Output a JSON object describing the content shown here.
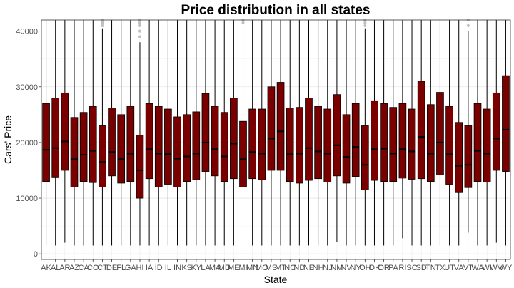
{
  "chart_data": {
    "type": "box",
    "title": "Price distribution in all states",
    "xlabel": "State",
    "ylabel": "Cars' Price",
    "ylim": [
      -1000,
      42000
    ],
    "yticks": [
      0,
      10000,
      20000,
      30000,
      40000
    ],
    "ytick_labels": [
      "0",
      "10000",
      "20000",
      "30000",
      "40000"
    ],
    "grid": true,
    "box_fill": "#7a0000",
    "box_edge": "#000000",
    "outlier_color": "#bfbfbf",
    "categories": [
      "AK",
      "AL",
      "AR",
      "AZ",
      "CA",
      "CO",
      "CT",
      "DE",
      "FL",
      "GA",
      "HI",
      "IA",
      "ID",
      "IL",
      "IN",
      "KS",
      "KY",
      "LA",
      "MA",
      "MD",
      "ME",
      "MI",
      "MN",
      "MO",
      "MS",
      "MT",
      "NC",
      "ND",
      "NE",
      "NH",
      "NJ",
      "NM",
      "NV",
      "NY",
      "OH",
      "OK",
      "OR",
      "PA",
      "RI",
      "SC",
      "SD",
      "TN",
      "TX",
      "UT",
      "VA",
      "VT",
      "WA",
      "WI",
      "WV",
      "WY"
    ],
    "boxes": [
      {
        "min": 1500,
        "q1": 13000,
        "median": 18700,
        "q3": 27000,
        "max": 42000,
        "outliers": []
      },
      {
        "min": 1500,
        "q1": 13800,
        "median": 19000,
        "q3": 28000,
        "max": 42000,
        "outliers": []
      },
      {
        "min": 2000,
        "q1": 15000,
        "median": 20200,
        "q3": 28900,
        "max": 42000,
        "outliers": []
      },
      {
        "min": 1500,
        "q1": 12000,
        "median": 17000,
        "q3": 24500,
        "max": 42000,
        "outliers": []
      },
      {
        "min": 1500,
        "q1": 13000,
        "median": 17800,
        "q3": 25400,
        "max": 42000,
        "outliers": []
      },
      {
        "min": 1500,
        "q1": 12800,
        "median": 18500,
        "q3": 26500,
        "max": 42000,
        "outliers": []
      },
      {
        "min": 1500,
        "q1": 12000,
        "median": 16500,
        "q3": 23000,
        "max": 40500,
        "outliers": [
          41000,
          41500,
          42000
        ]
      },
      {
        "min": 1500,
        "q1": 14000,
        "median": 18300,
        "q3": 26200,
        "max": 42000,
        "outliers": []
      },
      {
        "min": 1500,
        "q1": 12700,
        "median": 17000,
        "q3": 25000,
        "max": 42000,
        "outliers": []
      },
      {
        "min": 1500,
        "q1": 13000,
        "median": 18000,
        "q3": 26500,
        "max": 42000,
        "outliers": []
      },
      {
        "min": 1500,
        "q1": 10000,
        "median": 15000,
        "q3": 21300,
        "max": 38000,
        "outliers": [
          39000,
          40000,
          41000,
          41500,
          42000
        ]
      },
      {
        "min": 1500,
        "q1": 13500,
        "median": 18800,
        "q3": 27000,
        "max": 42000,
        "outliers": []
      },
      {
        "min": 1500,
        "q1": 12000,
        "median": 18000,
        "q3": 26500,
        "max": 42000,
        "outliers": []
      },
      {
        "min": 1500,
        "q1": 12500,
        "median": 17900,
        "q3": 26000,
        "max": 42000,
        "outliers": []
      },
      {
        "min": 1500,
        "q1": 12000,
        "median": 17100,
        "q3": 24600,
        "max": 42000,
        "outliers": []
      },
      {
        "min": 1500,
        "q1": 13000,
        "median": 17500,
        "q3": 25000,
        "max": 42000,
        "outliers": []
      },
      {
        "min": 1500,
        "q1": 13300,
        "median": 18000,
        "q3": 25500,
        "max": 42000,
        "outliers": []
      },
      {
        "min": 1500,
        "q1": 14800,
        "median": 20000,
        "q3": 28800,
        "max": 42000,
        "outliers": []
      },
      {
        "min": 1500,
        "q1": 14000,
        "median": 18800,
        "q3": 26500,
        "max": 42000,
        "outliers": []
      },
      {
        "min": 1500,
        "q1": 13000,
        "median": 17500,
        "q3": 25400,
        "max": 42000,
        "outliers": []
      },
      {
        "min": 1500,
        "q1": 13500,
        "median": 19800,
        "q3": 28000,
        "max": 42000,
        "outliers": []
      },
      {
        "min": 1500,
        "q1": 12000,
        "median": 17000,
        "q3": 23800,
        "max": 41000,
        "outliers": [
          41500,
          42000
        ]
      },
      {
        "min": 1500,
        "q1": 13500,
        "median": 18300,
        "q3": 26000,
        "max": 42000,
        "outliers": []
      },
      {
        "min": 1500,
        "q1": 13300,
        "median": 18000,
        "q3": 26000,
        "max": 42000,
        "outliers": []
      },
      {
        "min": 1500,
        "q1": 15000,
        "median": 20700,
        "q3": 30000,
        "max": 42000,
        "outliers": []
      },
      {
        "min": 1500,
        "q1": 15000,
        "median": 22000,
        "q3": 30800,
        "max": 42000,
        "outliers": []
      },
      {
        "min": 1500,
        "q1": 13000,
        "median": 17900,
        "q3": 26200,
        "max": 42000,
        "outliers": []
      },
      {
        "min": 1500,
        "q1": 12700,
        "median": 18000,
        "q3": 26300,
        "max": 42000,
        "outliers": []
      },
      {
        "min": 1500,
        "q1": 13200,
        "median": 19000,
        "q3": 28000,
        "max": 42000,
        "outliers": []
      },
      {
        "min": 1500,
        "q1": 13500,
        "median": 18400,
        "q3": 26500,
        "max": 42000,
        "outliers": []
      },
      {
        "min": 1500,
        "q1": 12900,
        "median": 18000,
        "q3": 26000,
        "max": 42000,
        "outliers": []
      },
      {
        "min": 2200,
        "q1": 14000,
        "median": 19500,
        "q3": 28600,
        "max": 42000,
        "outliers": []
      },
      {
        "min": 1500,
        "q1": 12700,
        "median": 17400,
        "q3": 25000,
        "max": 42000,
        "outliers": []
      },
      {
        "min": 1500,
        "q1": 13900,
        "median": 19200,
        "q3": 27000,
        "max": 42000,
        "outliers": []
      },
      {
        "min": 1500,
        "q1": 11500,
        "median": 16000,
        "q3": 23000,
        "max": 40500,
        "outliers": [
          41000,
          41500,
          42000
        ]
      },
      {
        "min": 1500,
        "q1": 13200,
        "median": 18800,
        "q3": 27500,
        "max": 42000,
        "outliers": []
      },
      {
        "min": 1500,
        "q1": 13000,
        "median": 18900,
        "q3": 27000,
        "max": 42000,
        "outliers": []
      },
      {
        "min": 1500,
        "q1": 13000,
        "median": 18000,
        "q3": 26300,
        "max": 42000,
        "outliers": []
      },
      {
        "min": 2800,
        "q1": 13600,
        "median": 18800,
        "q3": 27000,
        "max": 42000,
        "outliers": []
      },
      {
        "min": 1500,
        "q1": 13400,
        "median": 18400,
        "q3": 26000,
        "max": 42000,
        "outliers": []
      },
      {
        "min": 1500,
        "q1": 13500,
        "median": 21000,
        "q3": 31000,
        "max": 42000,
        "outliers": []
      },
      {
        "min": 1500,
        "q1": 13000,
        "median": 18000,
        "q3": 26800,
        "max": 42000,
        "outliers": []
      },
      {
        "min": 1500,
        "q1": 14200,
        "median": 20000,
        "q3": 29000,
        "max": 42000,
        "outliers": []
      },
      {
        "min": 1500,
        "q1": 12500,
        "median": 17900,
        "q3": 26500,
        "max": 42000,
        "outliers": []
      },
      {
        "min": 1500,
        "q1": 11000,
        "median": 15800,
        "q3": 23600,
        "max": 42000,
        "outliers": []
      },
      {
        "min": 3800,
        "q1": 11900,
        "median": 16000,
        "q3": 23000,
        "max": 40000,
        "outliers": [
          41000,
          42000
        ]
      },
      {
        "min": 1500,
        "q1": 13000,
        "median": 18500,
        "q3": 27000,
        "max": 42000,
        "outliers": []
      },
      {
        "min": 1500,
        "q1": 12900,
        "median": 18000,
        "q3": 26000,
        "max": 42000,
        "outliers": []
      },
      {
        "min": 2000,
        "q1": 15000,
        "median": 20700,
        "q3": 28900,
        "max": 42000,
        "outliers": []
      },
      {
        "min": 1500,
        "q1": 14800,
        "median": 22300,
        "q3": 32000,
        "max": 42000,
        "outliers": []
      }
    ]
  }
}
